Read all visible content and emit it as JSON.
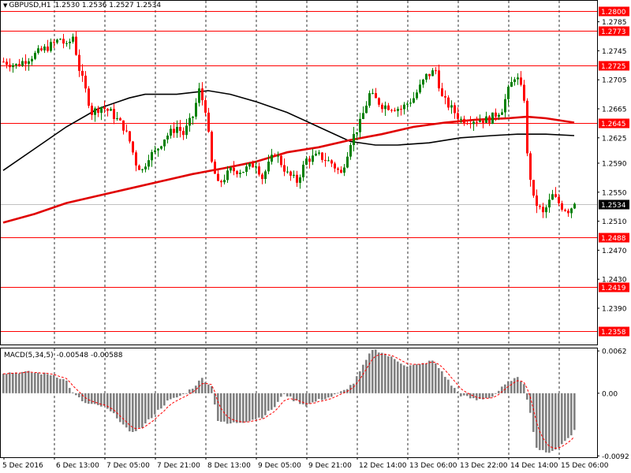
{
  "header": {
    "symbol_timeframe": "GBPUSD,H1",
    "ohlc": "1.2530 1.2536 1.2527 1.2534"
  },
  "macd_header": {
    "name": "MACD(5,34,5)",
    "values": "-0.00548 -0.00588"
  },
  "colors": {
    "bull": "#008000",
    "bear": "#ff0000",
    "level_line": "#ff0000",
    "sma_fast": "#000000",
    "sma_slow": "#e00000",
    "histogram": "#808080",
    "signal": "#ff0000",
    "grid": "#000000"
  },
  "chart_data": [
    {
      "type": "candlestick",
      "title": "GBPUSD,H1",
      "x_tick_labels": [
        "5 Dec 2016",
        "6 Dec 13:00",
        "7 Dec 05:00",
        "7 Dec 21:00",
        "8 Dec 13:00",
        "9 Dec 05:00",
        "9 Dec 21:00",
        "12 Dec 14:00",
        "13 Dec 06:00",
        "13 Dec 22:00",
        "14 Dec 14:00",
        "15 Dec 06:00"
      ],
      "ylim": [
        1.234,
        1.2815
      ],
      "y_ticks": [
        1.2785,
        1.2745,
        1.2705,
        1.2665,
        1.2625,
        1.259,
        1.255,
        1.251,
        1.247,
        1.243,
        1.239
      ],
      "current_price": 1.2534,
      "levels": [
        1.28,
        1.2773,
        1.2725,
        1.2645,
        1.2488,
        1.2419,
        1.2358
      ],
      "anchors": [
        [
          0,
          1.273
        ],
        [
          4,
          1.2725
        ],
        [
          10,
          1.274
        ],
        [
          16,
          1.2755
        ],
        [
          18,
          1.2762
        ],
        [
          20,
          1.275
        ],
        [
          22,
          1.2765
        ],
        [
          24,
          1.272
        ],
        [
          26,
          1.269
        ],
        [
          28,
          1.266
        ],
        [
          31,
          1.2668
        ],
        [
          34,
          1.266
        ],
        [
          38,
          1.264
        ],
        [
          40,
          1.262
        ],
        [
          42,
          1.259
        ],
        [
          44,
          1.258
        ],
        [
          46,
          1.26
        ],
        [
          48,
          1.2605
        ],
        [
          51,
          1.2625
        ],
        [
          55,
          1.264
        ],
        [
          57,
          1.263
        ],
        [
          60,
          1.2655
        ],
        [
          62,
          1.269
        ],
        [
          64,
          1.2665
        ],
        [
          66,
          1.259
        ],
        [
          68,
          1.256
        ],
        [
          72,
          1.258
        ],
        [
          76,
          1.258
        ],
        [
          80,
          1.259
        ],
        [
          82,
          1.257
        ],
        [
          86,
          1.2605
        ],
        [
          88,
          1.259
        ],
        [
          90,
          1.2575
        ],
        [
          93,
          1.2565
        ],
        [
          96,
          1.2595
        ],
        [
          100,
          1.26
        ],
        [
          104,
          1.259
        ],
        [
          107,
          1.2575
        ],
        [
          110,
          1.262
        ],
        [
          113,
          1.2645
        ],
        [
          116,
          1.2685
        ],
        [
          120,
          1.267
        ],
        [
          126,
          1.2665
        ],
        [
          130,
          1.268
        ],
        [
          134,
          1.271
        ],
        [
          137,
          1.2718
        ],
        [
          139,
          1.268
        ],
        [
          142,
          1.2665
        ],
        [
          145,
          1.265
        ],
        [
          150,
          1.265
        ],
        [
          154,
          1.265
        ],
        [
          158,
          1.2665
        ],
        [
          160,
          1.269
        ],
        [
          162,
          1.271
        ],
        [
          163,
          1.2705
        ],
        [
          165,
          1.268
        ],
        [
          166,
          1.26
        ],
        [
          168,
          1.254
        ],
        [
          171,
          1.252
        ],
        [
          174,
          1.2545
        ],
        [
          177,
          1.253
        ],
        [
          179,
          1.2525
        ],
        [
          181,
          1.2534
        ]
      ],
      "series": [
        {
          "name": "",
          "type": "line",
          "points": [
            [
              0,
              1.258
            ],
            [
              10,
              1.261
            ],
            [
              20,
              1.264
            ],
            [
              30,
              1.2665
            ],
            [
              40,
              1.268
            ],
            [
              45,
              1.2685
            ],
            [
              55,
              1.2685
            ],
            [
              65,
              1.269
            ],
            [
              72,
              1.2685
            ],
            [
              80,
              1.2675
            ],
            [
              90,
              1.266
            ],
            [
              100,
              1.264
            ],
            [
              110,
              1.262
            ],
            [
              118,
              1.2615
            ],
            [
              125,
              1.2615
            ],
            [
              135,
              1.2618
            ],
            [
              145,
              1.2625
            ],
            [
              155,
              1.2628
            ],
            [
              163,
              1.263
            ],
            [
              172,
              1.263
            ],
            [
              181,
              1.2628
            ]
          ]
        },
        {
          "name": "",
          "type": "line",
          "points": [
            [
              0,
              1.2508
            ],
            [
              10,
              1.252
            ],
            [
              20,
              1.2535
            ],
            [
              30,
              1.2545
            ],
            [
              40,
              1.2555
            ],
            [
              50,
              1.2565
            ],
            [
              60,
              1.2575
            ],
            [
              70,
              1.2583
            ],
            [
              80,
              1.2592
            ],
            [
              90,
              1.2605
            ],
            [
              100,
              1.2612
            ],
            [
              110,
              1.2622
            ],
            [
              120,
              1.263
            ],
            [
              130,
              1.264
            ],
            [
              140,
              1.2646
            ],
            [
              150,
              1.265
            ],
            [
              160,
              1.2652
            ],
            [
              166,
              1.2654
            ],
            [
              172,
              1.2652
            ],
            [
              181,
              1.2646
            ]
          ]
        }
      ]
    },
    {
      "type": "bar",
      "title": "MACD(5,34,5)",
      "ylim": [
        -0.0094,
        0.0067
      ],
      "y_ticks": [
        0.00622,
        0.0,
        -0.0092
      ],
      "histogram_anchors": [
        [
          0,
          0.003
        ],
        [
          8,
          0.0031
        ],
        [
          16,
          0.0027
        ],
        [
          20,
          0.0018
        ],
        [
          22,
          0.0
        ],
        [
          26,
          -0.0015
        ],
        [
          32,
          -0.002
        ],
        [
          36,
          -0.0035
        ],
        [
          40,
          -0.0058
        ],
        [
          44,
          -0.005
        ],
        [
          48,
          -0.003
        ],
        [
          52,
          -0.0012
        ],
        [
          57,
          -0.0002
        ],
        [
          60,
          0.0008
        ],
        [
          63,
          0.0022
        ],
        [
          66,
          0.001
        ],
        [
          68,
          -0.004
        ],
        [
          71,
          -0.0045
        ],
        [
          76,
          -0.0042
        ],
        [
          82,
          -0.0035
        ],
        [
          86,
          -0.002
        ],
        [
          89,
          0.0
        ],
        [
          92,
          -0.001
        ],
        [
          96,
          -0.0018
        ],
        [
          100,
          -0.001
        ],
        [
          104,
          -0.0005
        ],
        [
          108,
          0.0004
        ],
        [
          111,
          0.0015
        ],
        [
          114,
          0.004
        ],
        [
          117,
          0.0065
        ],
        [
          120,
          0.006
        ],
        [
          124,
          0.005
        ],
        [
          128,
          0.004
        ],
        [
          132,
          0.0042
        ],
        [
          136,
          0.0048
        ],
        [
          139,
          0.0032
        ],
        [
          142,
          0.0012
        ],
        [
          145,
          -0.0003
        ],
        [
          150,
          -0.001
        ],
        [
          155,
          -0.0005
        ],
        [
          158,
          0.0008
        ],
        [
          161,
          0.002
        ],
        [
          163,
          0.0022
        ],
        [
          165,
          0.0015
        ],
        [
          167,
          -0.003
        ],
        [
          169,
          -0.008
        ],
        [
          172,
          -0.0088
        ],
        [
          176,
          -0.008
        ],
        [
          181,
          -0.0055
        ]
      ]
    }
  ]
}
